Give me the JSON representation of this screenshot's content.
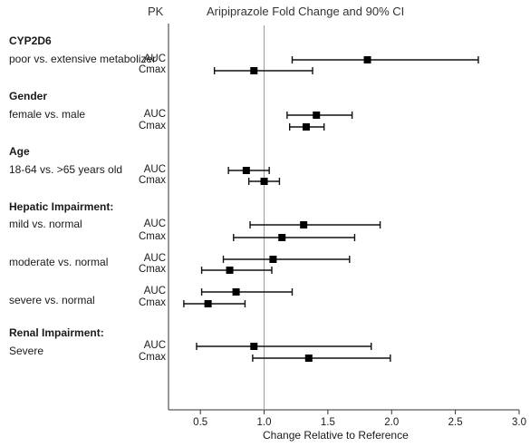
{
  "chart_data": {
    "type": "forest",
    "title": "Aripiprazole Fold Change and 90% CI",
    "pk_header": "PK",
    "xlabel": "Change Relative to Reference",
    "xlim": [
      0.25,
      3.0
    ],
    "xticks": [
      "0.5",
      "1.0",
      "1.5",
      "2.0",
      "2.5",
      "3.0"
    ],
    "reference_line": 1.0,
    "groups": [
      {
        "title": "CYP2D6",
        "comparisons": [
          {
            "label": "poor vs. extensive metabolizer",
            "rows": [
              {
                "pk": "AUC",
                "estimate": 1.81,
                "ci": [
                  1.22,
                  2.68
                ]
              },
              {
                "pk": "Cmax",
                "estimate": 0.92,
                "ci": [
                  0.61,
                  1.38
                ]
              }
            ]
          }
        ]
      },
      {
        "title": "Gender",
        "comparisons": [
          {
            "label": "female vs. male",
            "rows": [
              {
                "pk": "AUC",
                "estimate": 1.41,
                "ci": [
                  1.18,
                  1.69
                ]
              },
              {
                "pk": "Cmax",
                "estimate": 1.33,
                "ci": [
                  1.2,
                  1.47
                ]
              }
            ]
          }
        ]
      },
      {
        "title": "Age",
        "comparisons": [
          {
            "label": "18-64 vs. >65 years old",
            "rows": [
              {
                "pk": "AUC",
                "estimate": 0.86,
                "ci": [
                  0.72,
                  1.04
                ]
              },
              {
                "pk": "Cmax",
                "estimate": 1.0,
                "ci": [
                  0.88,
                  1.12
                ]
              }
            ]
          }
        ]
      },
      {
        "title": "Hepatic Impairment:",
        "comparisons": [
          {
            "label": "mild vs. normal",
            "rows": [
              {
                "pk": "AUC",
                "estimate": 1.31,
                "ci": [
                  0.89,
                  1.91
                ]
              },
              {
                "pk": "Cmax",
                "estimate": 1.14,
                "ci": [
                  0.76,
                  1.71
                ]
              }
            ]
          },
          {
            "label": "moderate vs. normal",
            "rows": [
              {
                "pk": "AUC",
                "estimate": 1.07,
                "ci": [
                  0.68,
                  1.67
                ]
              },
              {
                "pk": "Cmax",
                "estimate": 0.73,
                "ci": [
                  0.51,
                  1.06
                ]
              }
            ]
          },
          {
            "label": "severe vs. normal",
            "rows": [
              {
                "pk": "AUC",
                "estimate": 0.78,
                "ci": [
                  0.51,
                  1.22
                ]
              },
              {
                "pk": "Cmax",
                "estimate": 0.56,
                "ci": [
                  0.37,
                  0.85
                ]
              }
            ]
          }
        ]
      },
      {
        "title": "Renal Impairment:",
        "comparisons": [
          {
            "label": "Severe",
            "rows": [
              {
                "pk": "AUC",
                "estimate": 0.92,
                "ci": [
                  0.47,
                  1.84
                ]
              },
              {
                "pk": "Cmax",
                "estimate": 1.35,
                "ci": [
                  0.91,
                  1.99
                ]
              }
            ]
          }
        ]
      }
    ]
  }
}
